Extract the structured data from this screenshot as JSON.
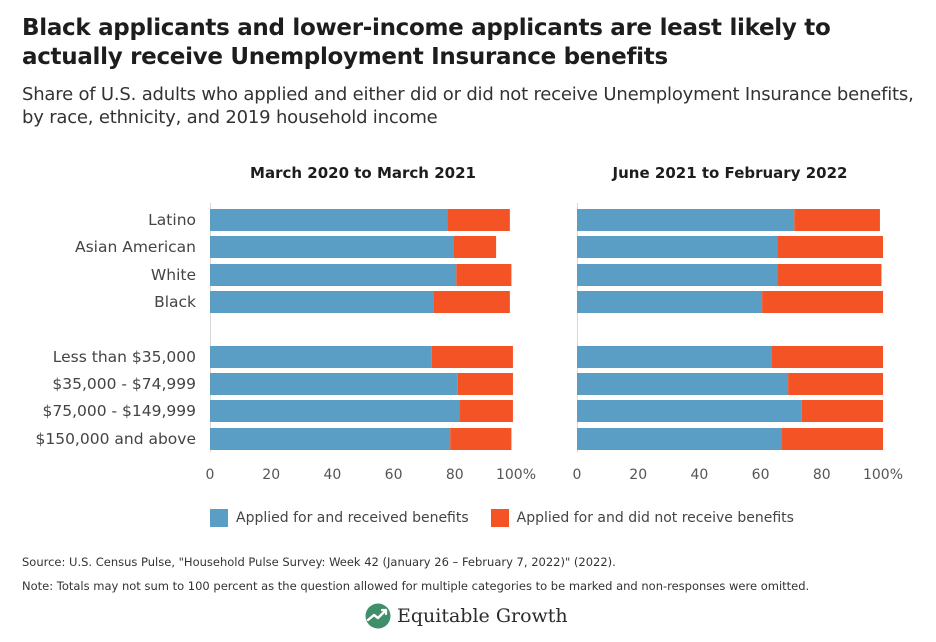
{
  "title": "Black applicants and lower-income applicants are least likely to actually receive Unemployment Insurance benefits",
  "subtitle": "Share of U.S. adults who applied and either did or did not receive Unemployment Insurance benefits, by race, ethnicity, and 2019 household income",
  "colors": {
    "received": "#5a9ec6",
    "not_received": "#f45325"
  },
  "chart_data": {
    "type": "bar",
    "orientation": "horizontal",
    "stacked": true,
    "categories": [
      "Latino",
      "Asian American",
      "White",
      "Black",
      "Less than $35,000",
      "$35,000 - $74,999",
      "$75,000 - $149,999",
      "$150,000 and above"
    ],
    "category_groups": [
      [
        "Latino",
        "Asian American",
        "White",
        "Black"
      ],
      [
        "Less than $35,000",
        "$35,000 - $74,999",
        "$75,000 - $149,999",
        "$150,000 and above"
      ]
    ],
    "xlim": [
      0,
      100
    ],
    "xticks": [
      "0",
      "20",
      "40",
      "60",
      "80",
      "100%"
    ],
    "legend": {
      "position": "bottom",
      "entries": [
        "Applied for and received benefits",
        "Applied for and did not receive benefits"
      ]
    },
    "panels": [
      {
        "title": "March 2020 to March 2021",
        "series": [
          {
            "name": "Applied for and received benefits",
            "values": [
              77.5,
              79.5,
              80.5,
              73.0,
              72.5,
              81.0,
              81.5,
              78.5
            ]
          },
          {
            "name": "Applied for and did not receive benefits",
            "values": [
              20.5,
              14.0,
              18.0,
              25.0,
              26.5,
              18.0,
              17.5,
              20.0
            ]
          }
        ]
      },
      {
        "title": "June 2021 to February 2022",
        "series": [
          {
            "name": "Applied for and received benefits",
            "values": [
              71.0,
              65.5,
              65.5,
              60.5,
              63.5,
              69.0,
              73.5,
              67.0
            ]
          },
          {
            "name": "Applied for and did not receive benefits",
            "values": [
              28.0,
              34.5,
              34.0,
              39.5,
              36.5,
              31.0,
              26.5,
              33.0
            ]
          }
        ]
      }
    ]
  },
  "source": "Source: U.S. Census Pulse, \"Household Pulse Survey: Week 42 (January 26 – February 7, 2022)\" (2022).",
  "note": "Note: Totals may not sum to 100 percent as the question allowed for multiple categories to be marked and non-responses were omitted.",
  "brand": {
    "name": "Equitable Growth",
    "logo_icon": "growth-leaf-icon"
  }
}
